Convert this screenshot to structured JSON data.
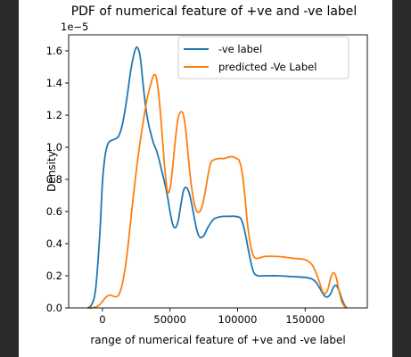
{
  "chart_data": {
    "type": "line",
    "title": "PDF of numerical feature of +ve and -ve label",
    "xlabel": "range of numerical feature of +ve and -ve label",
    "ylabel": "Density",
    "y_offset_label": "1e−5",
    "xlim": [
      -25000,
      196000
    ],
    "ylim": [
      0,
      1.7
    ],
    "y_scale_factor": 1e-05,
    "x_ticks": [
      0,
      50000,
      100000,
      150000
    ],
    "x_tick_labels": [
      "0",
      "50000",
      "100000",
      "150000"
    ],
    "y_ticks": [
      0.0,
      0.2,
      0.4,
      0.6,
      0.8,
      1.0,
      1.2,
      1.4,
      1.6
    ],
    "y_tick_labels": [
      "0.0",
      "0.2",
      "0.4",
      "0.6",
      "0.8",
      "1.0",
      "1.2",
      "1.4",
      "1.6"
    ],
    "grid": false,
    "legend_position": "top-right",
    "series": [
      {
        "name": "-ve label",
        "color": "#1f77b4",
        "x": [
          -11000,
          -8000,
          -5000,
          -2000,
          0,
          2000,
          4000,
          6000,
          9000,
          12000,
          15000,
          18000,
          21000,
          24000,
          26000,
          28000,
          30000,
          32000,
          34000,
          36000,
          38000,
          40000,
          42000,
          44000,
          46000,
          48000,
          50000,
          52000,
          54000,
          56000,
          58000,
          60000,
          62000,
          64000,
          66000,
          68000,
          70000,
          72000,
          75000,
          78000,
          82000,
          86000,
          90000,
          94000,
          98000,
          102000,
          104000,
          106000,
          108000,
          110000,
          112000,
          115000,
          120000,
          130000,
          140000,
          150000,
          155000,
          158000,
          161000,
          163000,
          165000,
          167000,
          169000,
          171000,
          173000,
          175000,
          177000,
          179000,
          181000
        ],
        "y": [
          0.0,
          0.02,
          0.12,
          0.45,
          0.78,
          0.95,
          1.02,
          1.04,
          1.05,
          1.07,
          1.15,
          1.3,
          1.48,
          1.6,
          1.62,
          1.56,
          1.4,
          1.25,
          1.15,
          1.08,
          1.02,
          0.98,
          0.92,
          0.85,
          0.78,
          0.7,
          0.6,
          0.52,
          0.5,
          0.54,
          0.64,
          0.73,
          0.75,
          0.72,
          0.65,
          0.56,
          0.48,
          0.44,
          0.45,
          0.5,
          0.55,
          0.565,
          0.57,
          0.57,
          0.57,
          0.56,
          0.52,
          0.45,
          0.36,
          0.28,
          0.22,
          0.2,
          0.2,
          0.2,
          0.195,
          0.19,
          0.18,
          0.16,
          0.12,
          0.09,
          0.07,
          0.07,
          0.09,
          0.13,
          0.14,
          0.11,
          0.06,
          0.02,
          0.0
        ]
      },
      {
        "name": "predicted -Ve Label",
        "color": "#ff7f0e",
        "x": [
          -11000,
          -8000,
          -5000,
          -2000,
          0,
          3000,
          6000,
          9000,
          12000,
          15000,
          18000,
          21000,
          24000,
          27000,
          30000,
          33000,
          36000,
          38000,
          40000,
          42000,
          44000,
          46000,
          48000,
          50000,
          52000,
          54000,
          56000,
          58000,
          60000,
          62000,
          64000,
          66000,
          68000,
          70000,
          72000,
          74000,
          76000,
          78000,
          80000,
          82000,
          86000,
          90000,
          94000,
          97000,
          99000,
          101000,
          103000,
          105000,
          107000,
          109000,
          111000,
          113000,
          116000,
          120000,
          130000,
          140000,
          150000,
          155000,
          158000,
          161000,
          163000,
          165000,
          167000,
          169000,
          171000,
          173000,
          175000,
          177000,
          179000,
          181000
        ],
        "y": [
          0.0,
          0.0,
          0.005,
          0.02,
          0.04,
          0.07,
          0.08,
          0.07,
          0.08,
          0.16,
          0.32,
          0.55,
          0.78,
          0.98,
          1.15,
          1.3,
          1.4,
          1.45,
          1.43,
          1.3,
          1.1,
          0.88,
          0.73,
          0.74,
          0.88,
          1.05,
          1.18,
          1.22,
          1.2,
          1.08,
          0.9,
          0.75,
          0.65,
          0.6,
          0.6,
          0.64,
          0.72,
          0.82,
          0.9,
          0.92,
          0.93,
          0.93,
          0.94,
          0.94,
          0.93,
          0.92,
          0.86,
          0.73,
          0.55,
          0.42,
          0.34,
          0.31,
          0.31,
          0.32,
          0.32,
          0.31,
          0.3,
          0.27,
          0.22,
          0.15,
          0.1,
          0.09,
          0.12,
          0.19,
          0.22,
          0.19,
          0.11,
          0.04,
          0.01,
          0.0
        ]
      }
    ]
  }
}
